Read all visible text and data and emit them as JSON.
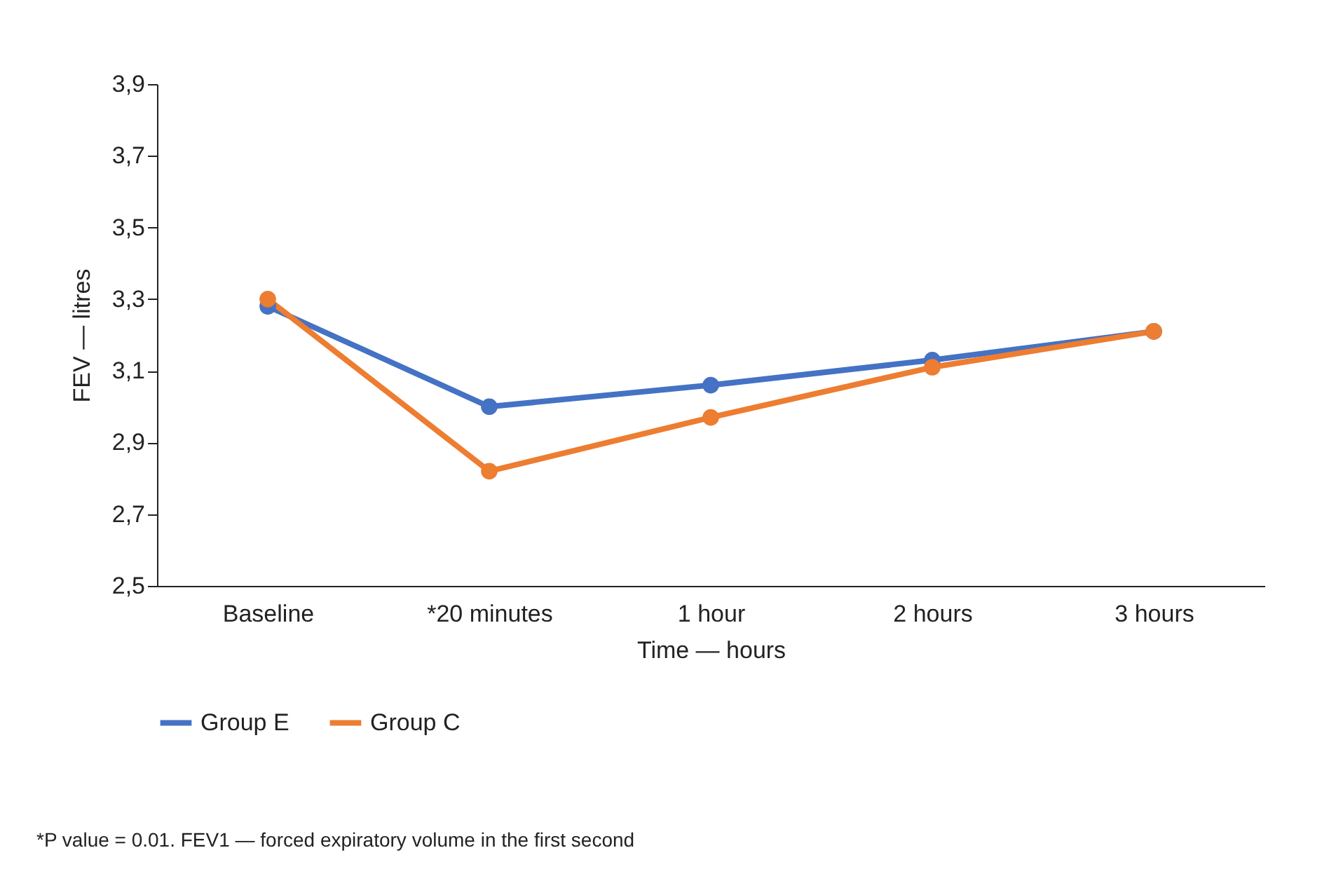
{
  "chart_data": {
    "type": "line",
    "xlabel": "Time — hours",
    "ylabel": "FEV — litres",
    "categories": [
      "Baseline",
      "*20 minutes",
      "1 hour",
      "2 hours",
      "3 hours"
    ],
    "series": [
      {
        "name": "Group E",
        "color": "#4472c4",
        "values": [
          3.28,
          3.0,
          3.06,
          3.13,
          3.21
        ]
      },
      {
        "name": "Group C",
        "color": "#ed7d31",
        "values": [
          3.3,
          2.82,
          2.97,
          3.11,
          3.21
        ]
      }
    ],
    "ylim": [
      2.5,
      3.9
    ],
    "yticks": [
      {
        "value": 2.5,
        "label": "2,5"
      },
      {
        "value": 2.7,
        "label": "2,7"
      },
      {
        "value": 2.9,
        "label": "2,9"
      },
      {
        "value": 3.1,
        "label": "3,1"
      },
      {
        "value": 3.3,
        "label": "3,3"
      },
      {
        "value": 3.5,
        "label": "3,5"
      },
      {
        "value": 3.7,
        "label": "3,7"
      },
      {
        "value": 3.9,
        "label": "3,9"
      }
    ],
    "grid": false,
    "legend": "bottom",
    "marker": "circle",
    "line_style": "solid",
    "annotations": [
      "*P value = 0.01. FEV1 — forced expiratory volume in the first second"
    ]
  }
}
